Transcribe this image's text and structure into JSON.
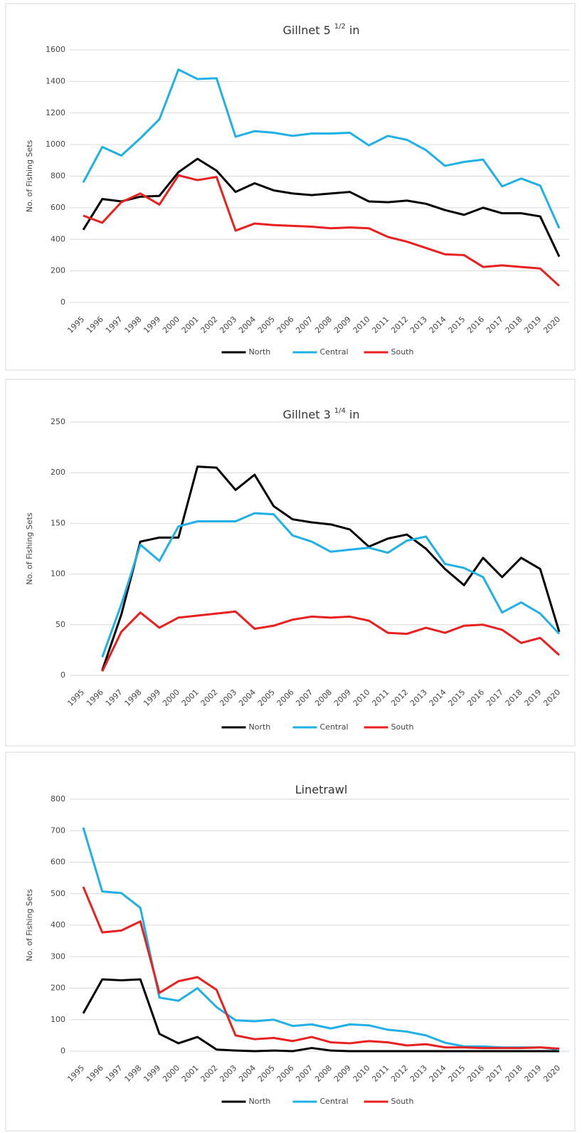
{
  "chart_data": [
    {
      "type": "line",
      "title": "Gillnet 5",
      "title_sup": "1/2",
      "title_end": "in",
      "y_label": "No. of Fishing Sets",
      "categories": [
        "1995",
        "1996",
        "1997",
        "1998",
        "1999",
        "2000",
        "2001",
        "2002",
        "2003",
        "2004",
        "2005",
        "2006",
        "2007",
        "2008",
        "2009",
        "2010",
        "2011",
        "2012",
        "2013",
        "2014",
        "2015",
        "2016",
        "2017",
        "2018",
        "2019",
        "2020"
      ],
      "ylim": [
        0,
        1600
      ],
      "yticks": [
        0,
        200,
        400,
        600,
        800,
        1000,
        1200,
        1400,
        1600
      ],
      "grid": true,
      "series": [
        {
          "name": "North",
          "color": "#000000",
          "values": [
            460,
            655,
            640,
            670,
            675,
            825,
            910,
            835,
            700,
            755,
            710,
            690,
            680,
            690,
            700,
            640,
            635,
            645,
            625,
            585,
            555,
            600,
            565,
            565,
            545,
            290
          ]
        },
        {
          "name": "Central",
          "color": "#1fb0e6",
          "values": [
            760,
            985,
            930,
            1040,
            1160,
            1475,
            1415,
            1420,
            1050,
            1085,
            1075,
            1055,
            1070,
            1070,
            1075,
            995,
            1055,
            1030,
            965,
            865,
            890,
            905,
            735,
            785,
            740,
            470
          ]
        },
        {
          "name": "South",
          "color": "#e8201f",
          "values": [
            550,
            505,
            635,
            690,
            620,
            805,
            775,
            795,
            455,
            500,
            490,
            485,
            480,
            470,
            475,
            470,
            415,
            385,
            345,
            305,
            300,
            225,
            235,
            225,
            215,
            105
          ]
        }
      ]
    },
    {
      "type": "line",
      "title": "Gillnet 3",
      "title_sup": "1/4",
      "title_end": "in",
      "y_label": "No. of Fishing Sets",
      "categories": [
        "1995",
        "1996",
        "1997",
        "1998",
        "1999",
        "2000",
        "2001",
        "2002",
        "2003",
        "2004",
        "2005",
        "2006",
        "2007",
        "2008",
        "2009",
        "2010",
        "2011",
        "2012",
        "2013",
        "2014",
        "2015",
        "2016",
        "2017",
        "2018",
        "2019",
        "2020"
      ],
      "ylim": [
        0,
        250
      ],
      "yticks": [
        0,
        50,
        100,
        150,
        200,
        250
      ],
      "grid": true,
      "series": [
        {
          "name": "North",
          "color": "#000000",
          "values": [
            null,
            5,
            60,
            132,
            136,
            136,
            206,
            205,
            183,
            198,
            167,
            154,
            151,
            149,
            144,
            127,
            135,
            139,
            125,
            105,
            89,
            116,
            97,
            116,
            105,
            43
          ]
        },
        {
          "name": "Central",
          "color": "#1fb0e6",
          "values": [
            null,
            18,
            70,
            129,
            113,
            147,
            152,
            152,
            152,
            160,
            159,
            138,
            132,
            122,
            124,
            126,
            121,
            133,
            137,
            110,
            106,
            97,
            62,
            72,
            61,
            41
          ]
        },
        {
          "name": "South",
          "color": "#e8201f",
          "values": [
            null,
            4,
            43,
            62,
            47,
            57,
            59,
            61,
            63,
            46,
            49,
            55,
            58,
            57,
            58,
            54,
            42,
            41,
            47,
            42,
            49,
            50,
            45,
            32,
            37,
            20
          ]
        }
      ]
    },
    {
      "type": "line",
      "title": "Linetrawl",
      "y_label": "No. of Fishing Sets",
      "categories": [
        "1995",
        "1996",
        "1997",
        "1998",
        "1999",
        "2000",
        "2001",
        "2002",
        "2003",
        "2004",
        "2005",
        "2006",
        "2007",
        "2008",
        "2009",
        "2010",
        "2011",
        "2012",
        "2013",
        "2014",
        "2015",
        "2016",
        "2017",
        "2018",
        "2019",
        "2020"
      ],
      "ylim": [
        0,
        800
      ],
      "yticks": [
        0,
        100,
        200,
        300,
        400,
        500,
        600,
        700,
        800
      ],
      "grid": true,
      "series": [
        {
          "name": "North",
          "color": "#000000",
          "values": [
            120,
            228,
            225,
            228,
            55,
            25,
            45,
            5,
            2,
            0,
            2,
            0,
            10,
            2,
            0,
            0,
            0,
            0,
            0,
            0,
            0,
            0,
            0,
            0,
            0,
            0
          ]
        },
        {
          "name": "Central",
          "color": "#1fb0e6",
          "values": [
            710,
            507,
            502,
            455,
            170,
            160,
            200,
            140,
            98,
            95,
            100,
            80,
            85,
            72,
            85,
            82,
            68,
            62,
            50,
            27,
            15,
            15,
            12,
            12,
            12,
            5
          ]
        },
        {
          "name": "South",
          "color": "#e8201f",
          "values": [
            522,
            377,
            383,
            412,
            185,
            222,
            235,
            195,
            50,
            38,
            42,
            32,
            45,
            28,
            25,
            32,
            28,
            18,
            22,
            12,
            12,
            10,
            10,
            10,
            12,
            8
          ]
        }
      ]
    }
  ]
}
